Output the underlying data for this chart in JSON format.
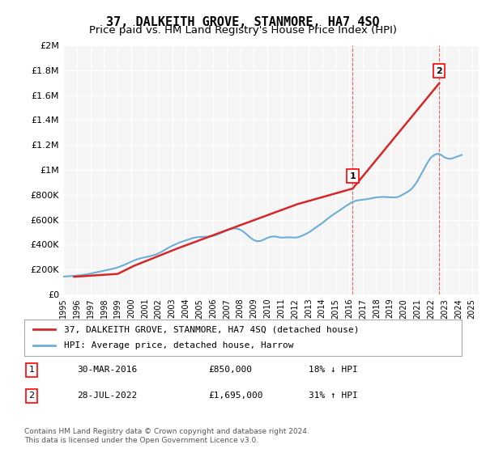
{
  "title": "37, DALKEITH GROVE, STANMORE, HA7 4SQ",
  "subtitle": "Price paid vs. HM Land Registry's House Price Index (HPI)",
  "ylabel_ticks": [
    "£0",
    "£200K",
    "£400K",
    "£600K",
    "£800K",
    "£1M",
    "£1.2M",
    "£1.4M",
    "£1.6M",
    "£1.8M",
    "£2M"
  ],
  "ytick_values": [
    0,
    200000,
    400000,
    600000,
    800000,
    1000000,
    1200000,
    1400000,
    1600000,
    1800000,
    2000000
  ],
  "ylim": [
    0,
    2000000
  ],
  "xlim_start": 1995.0,
  "xlim_end": 2025.5,
  "x_ticks": [
    1995,
    1996,
    1997,
    1998,
    1999,
    2000,
    2001,
    2002,
    2003,
    2004,
    2005,
    2006,
    2007,
    2008,
    2009,
    2010,
    2011,
    2012,
    2013,
    2014,
    2015,
    2016,
    2017,
    2018,
    2019,
    2020,
    2021,
    2022,
    2023,
    2024,
    2025
  ],
  "hpi_color": "#6baed6",
  "price_color": "#d62728",
  "dashed_line_color": "#d62728",
  "marker1_x": 2016.25,
  "marker1_y": 850000,
  "marker1_label": "1",
  "marker2_x": 2022.6,
  "marker2_y": 1695000,
  "marker2_label": "2",
  "legend_label1": "37, DALKEITH GROVE, STANMORE, HA7 4SQ (detached house)",
  "legend_label2": "HPI: Average price, detached house, Harrow",
  "annotation1_date": "30-MAR-2016",
  "annotation1_price": "£850,000",
  "annotation1_hpi": "18% ↓ HPI",
  "annotation2_date": "28-JUL-2022",
  "annotation2_price": "£1,695,000",
  "annotation2_hpi": "31% ↑ HPI",
  "footer": "Contains HM Land Registry data © Crown copyright and database right 2024.\nThis data is licensed under the Open Government Licence v3.0.",
  "bg_color": "#ffffff",
  "plot_bg_color": "#f5f5f5",
  "grid_color": "#ffffff",
  "title_fontsize": 11,
  "subtitle_fontsize": 9.5,
  "hpi_data_x": [
    1995.0,
    1995.25,
    1995.5,
    1995.75,
    1996.0,
    1996.25,
    1996.5,
    1996.75,
    1997.0,
    1997.25,
    1997.5,
    1997.75,
    1998.0,
    1998.25,
    1998.5,
    1998.75,
    1999.0,
    1999.25,
    1999.5,
    1999.75,
    2000.0,
    2000.25,
    2000.5,
    2000.75,
    2001.0,
    2001.25,
    2001.5,
    2001.75,
    2002.0,
    2002.25,
    2002.5,
    2002.75,
    2003.0,
    2003.25,
    2003.5,
    2003.75,
    2004.0,
    2004.25,
    2004.5,
    2004.75,
    2005.0,
    2005.25,
    2005.5,
    2005.75,
    2006.0,
    2006.25,
    2006.5,
    2006.75,
    2007.0,
    2007.25,
    2007.5,
    2007.75,
    2008.0,
    2008.25,
    2008.5,
    2008.75,
    2009.0,
    2009.25,
    2009.5,
    2009.75,
    2010.0,
    2010.25,
    2010.5,
    2010.75,
    2011.0,
    2011.25,
    2011.5,
    2011.75,
    2012.0,
    2012.25,
    2012.5,
    2012.75,
    2013.0,
    2013.25,
    2013.5,
    2013.75,
    2014.0,
    2014.25,
    2014.5,
    2014.75,
    2015.0,
    2015.25,
    2015.5,
    2015.75,
    2016.0,
    2016.25,
    2016.5,
    2016.75,
    2017.0,
    2017.25,
    2017.5,
    2017.75,
    2018.0,
    2018.25,
    2018.5,
    2018.75,
    2019.0,
    2019.25,
    2019.5,
    2019.75,
    2020.0,
    2020.25,
    2020.5,
    2020.75,
    2021.0,
    2021.25,
    2021.5,
    2021.75,
    2022.0,
    2022.25,
    2022.5,
    2022.75,
    2023.0,
    2023.25,
    2023.5,
    2023.75,
    2024.0,
    2024.25
  ],
  "hpi_data_y": [
    143000,
    145000,
    147000,
    149000,
    151000,
    154000,
    158000,
    162000,
    167000,
    173000,
    179000,
    185000,
    191000,
    197000,
    203000,
    209000,
    217000,
    227000,
    238000,
    250000,
    263000,
    275000,
    285000,
    292000,
    298000,
    304000,
    311000,
    319000,
    330000,
    344000,
    360000,
    376000,
    390000,
    403000,
    415000,
    425000,
    434000,
    443000,
    452000,
    458000,
    461000,
    462000,
    463000,
    465000,
    470000,
    478000,
    490000,
    502000,
    514000,
    524000,
    530000,
    529000,
    519000,
    502000,
    479000,
    455000,
    436000,
    427000,
    430000,
    441000,
    455000,
    463000,
    466000,
    461000,
    456000,
    457000,
    459000,
    458000,
    456000,
    460000,
    470000,
    482000,
    496000,
    514000,
    534000,
    553000,
    572000,
    594000,
    616000,
    636000,
    654000,
    672000,
    691000,
    710000,
    727000,
    743000,
    753000,
    758000,
    761000,
    764000,
    769000,
    775000,
    779000,
    782000,
    783000,
    782000,
    780000,
    779000,
    781000,
    791000,
    806000,
    822000,
    840000,
    870000,
    910000,
    960000,
    1010000,
    1060000,
    1100000,
    1120000,
    1130000,
    1120000,
    1100000,
    1090000,
    1090000,
    1100000,
    1110000,
    1120000
  ],
  "price_data_x": [
    1995.8,
    1999.0,
    2000.2,
    2003.4,
    2007.6,
    2012.2,
    2016.25,
    2022.6
  ],
  "price_data_y": [
    142000,
    165000,
    230000,
    370000,
    540000,
    725000,
    850000,
    1695000
  ]
}
